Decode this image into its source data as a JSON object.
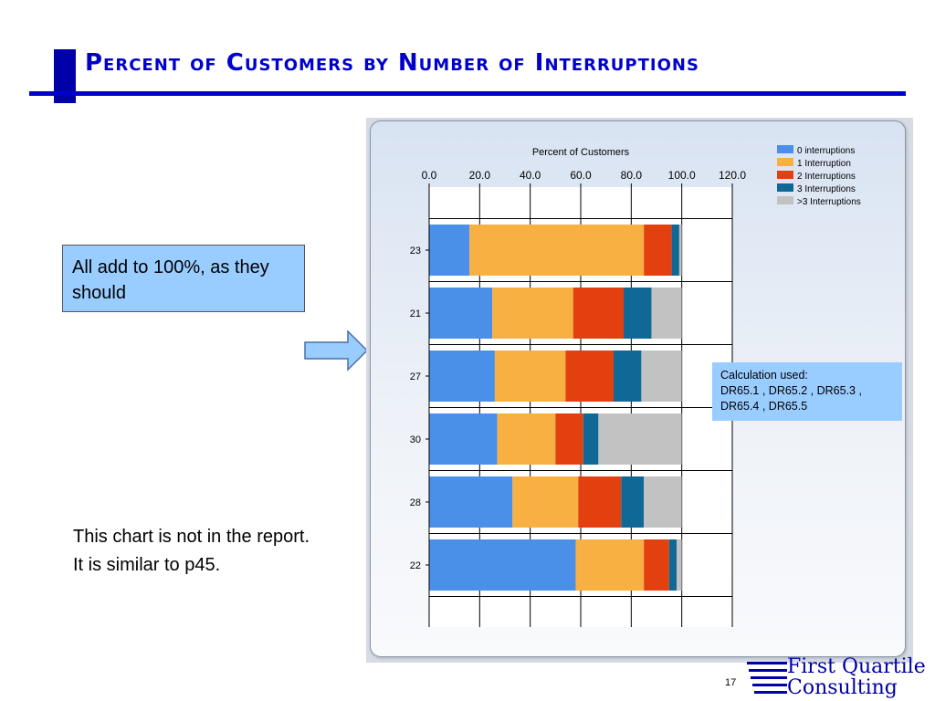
{
  "slide": {
    "title": "Percent of Customers by Number of Interruptions",
    "note_box": "All add to 100%, as they should",
    "note_text": "This chart is not in the report.  It is similar to p45.",
    "calc_box_line1": "Calculation used:",
    "calc_box_line2": "DR65.1 , DR65.2 , DR65.3 ,",
    "calc_box_line3": "DR65.4 , DR65.5",
    "page_number": "17",
    "logo_line1": "First Quartile",
    "logo_line2": "Consulting"
  },
  "colors": {
    "title": "#0000cc",
    "note_fill": "#99ccff"
  },
  "chart_data": {
    "type": "bar",
    "orientation": "horizontal",
    "stacked": true,
    "title": "Percent of Customers",
    "categories": [
      "23",
      "21",
      "27",
      "30",
      "28",
      "22"
    ],
    "xlim": [
      0,
      120
    ],
    "x_ticks": [
      "0.0",
      "20.0",
      "40.0",
      "60.0",
      "80.0",
      "100.0",
      "120.0"
    ],
    "x_axis_position": "top",
    "grid": true,
    "legend_position": "top-right",
    "series": [
      {
        "name": "0 interruptions",
        "color": "#4a90e8",
        "values": [
          16,
          25,
          26,
          27,
          33,
          58
        ]
      },
      {
        "name": "1 Interruption",
        "color": "#f9b042",
        "values": [
          69,
          32,
          28,
          23,
          26,
          27
        ]
      },
      {
        "name": "2 Interruptions",
        "color": "#e2410f",
        "values": [
          11,
          20,
          19,
          11,
          17,
          10
        ]
      },
      {
        "name": "3 Interruptions",
        "color": "#0f6896",
        "values": [
          3,
          11,
          11,
          6,
          9,
          3
        ]
      },
      {
        "name": ">3 Interruptions",
        "color": "#c2c2c2",
        "values": [
          1,
          12,
          16,
          33,
          15,
          2
        ]
      }
    ]
  }
}
